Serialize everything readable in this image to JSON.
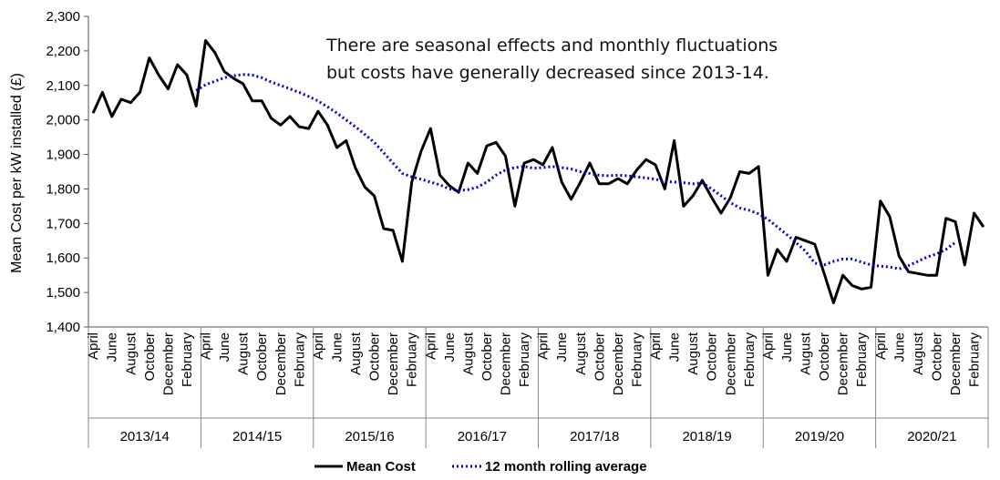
{
  "chart_data": {
    "type": "line",
    "ylabel": "Mean Cost per kW installed (£)",
    "ylim": [
      1400,
      2300
    ],
    "yticks": [
      "1,400",
      "1,500",
      "1,600",
      "1,700",
      "1,800",
      "1,900",
      "2,000",
      "2,100",
      "2,200",
      "2,300"
    ],
    "grid": false,
    "legend_position": "bottom",
    "annotation": [
      "There are seasonal effects and monthly fluctuations",
      "but costs have generally decreased since 2013-14."
    ],
    "years": [
      "2013/14",
      "2014/15",
      "2015/16",
      "2016/17",
      "2017/18",
      "2018/19",
      "2019/20",
      "2020/21"
    ],
    "month_labels": [
      "April",
      "June",
      "August",
      "October",
      "December",
      "February"
    ],
    "series": [
      {
        "name": "Mean Cost",
        "color": "#000000",
        "style": "solid",
        "values": [
          2020,
          2080,
          2010,
          2060,
          2050,
          2080,
          2180,
          2130,
          2090,
          2160,
          2130,
          2040,
          2230,
          2195,
          2140,
          2120,
          2105,
          2055,
          2055,
          2005,
          1985,
          2010,
          1980,
          1975,
          2025,
          1985,
          1920,
          1940,
          1860,
          1805,
          1780,
          1685,
          1680,
          1590,
          1820,
          1910,
          1975,
          1840,
          1810,
          1790,
          1875,
          1845,
          1925,
          1935,
          1895,
          1750,
          1875,
          1885,
          1870,
          1920,
          1820,
          1770,
          1820,
          1875,
          1815,
          1815,
          1830,
          1815,
          1855,
          1885,
          1870,
          1800,
          1940,
          1750,
          1780,
          1825,
          1775,
          1730,
          1775,
          1850,
          1845,
          1865,
          1550,
          1625,
          1590,
          1660,
          1650,
          1640,
          1555,
          1470,
          1550,
          1520,
          1510,
          1515,
          1765,
          1720,
          1605,
          1560,
          1555,
          1550,
          1550,
          1715,
          1705,
          1580,
          1730,
          1690
        ]
      },
      {
        "name": "12 month rolling average",
        "color": "#0000cc",
        "style": "dotted",
        "start_index": 11,
        "values": [
          2085,
          2102,
          2112,
          2122,
          2128,
          2132,
          2130,
          2122,
          2110,
          2100,
          2090,
          2080,
          2068,
          2055,
          2038,
          2020,
          2000,
          1980,
          1958,
          1935,
          1905,
          1875,
          1845,
          1835,
          1828,
          1820,
          1812,
          1800,
          1795,
          1798,
          1805,
          1820,
          1840,
          1855,
          1862,
          1865,
          1860,
          1862,
          1865,
          1862,
          1858,
          1850,
          1845,
          1840,
          1838,
          1840,
          1838,
          1835,
          1832,
          1828,
          1822,
          1820,
          1818,
          1815,
          1818,
          1800,
          1780,
          1760,
          1745,
          1738,
          1728,
          1712,
          1690,
          1668,
          1645,
          1620,
          1585,
          1580,
          1590,
          1597,
          1597,
          1588,
          1580,
          1576,
          1574,
          1568,
          1578,
          1590,
          1603,
          1612,
          1625,
          1645
        ]
      }
    ]
  }
}
